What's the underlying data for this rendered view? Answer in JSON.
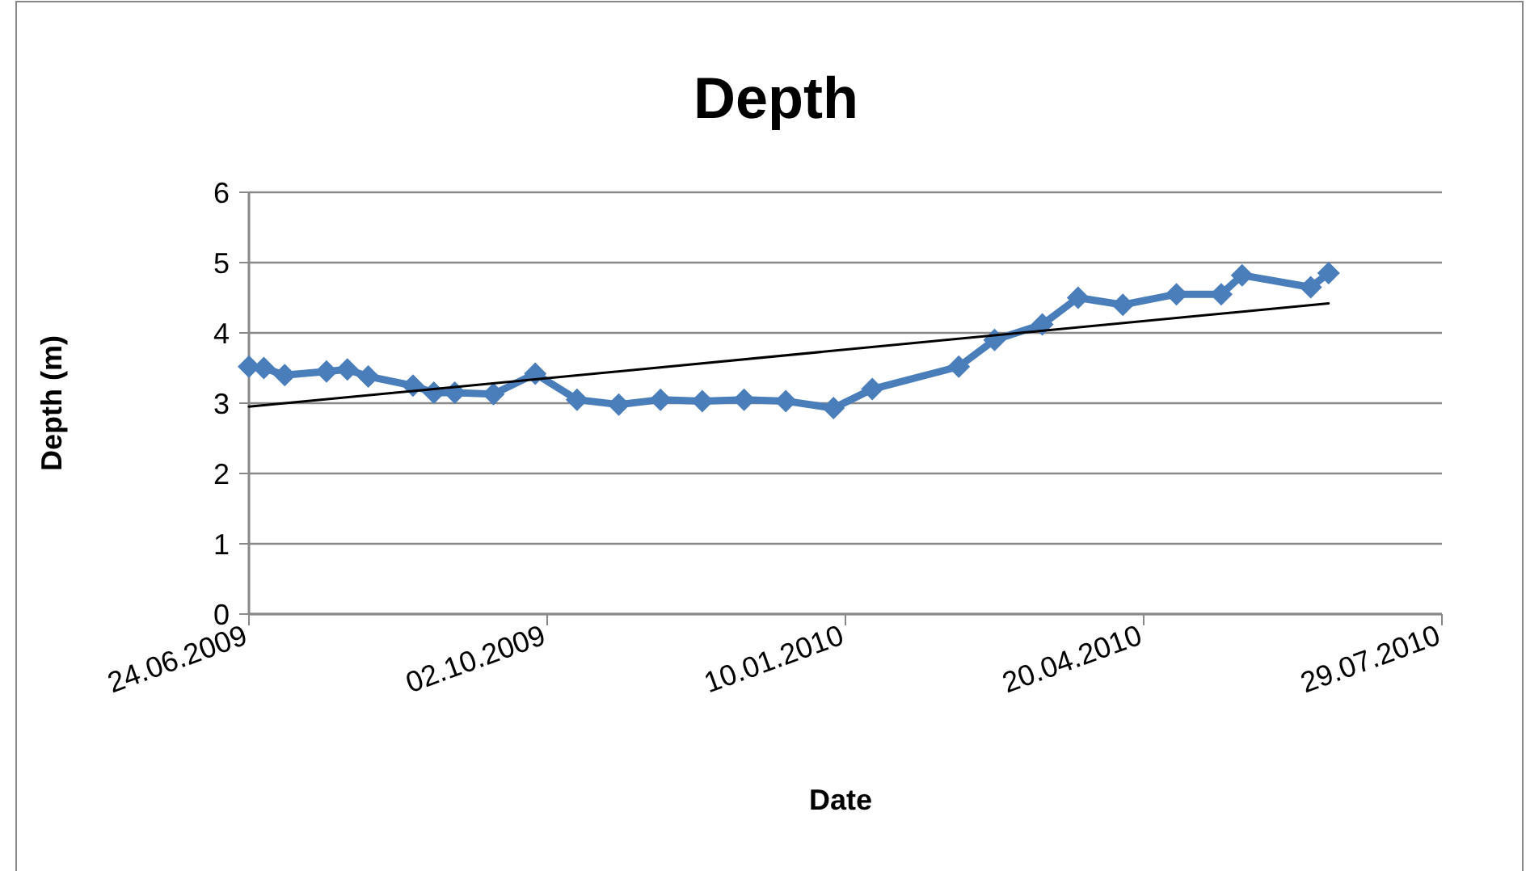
{
  "chart_data": {
    "type": "line",
    "title": "Depth",
    "xlabel": "Date",
    "ylabel": "Depth (m)",
    "xlim": [
      "2009-06-24",
      "2010-07-29"
    ],
    "xticks": [
      {
        "value": "2009-06-24",
        "label": "24.06.2009"
      },
      {
        "value": "2009-10-02",
        "label": "02.10.2009"
      },
      {
        "value": "2010-01-10",
        "label": "10.01.2010"
      },
      {
        "value": "2010-04-20",
        "label": "20.04.2010"
      },
      {
        "value": "2010-07-29",
        "label": "29.07.2010"
      }
    ],
    "ylim": [
      0,
      6
    ],
    "yticks": [
      0,
      1,
      2,
      3,
      4,
      5,
      6
    ],
    "grid": "y",
    "series": [
      {
        "color": "#4a7ebb",
        "marker": "diamond",
        "line_style": "solid",
        "x": [
          "2009-06-24",
          "2009-06-29",
          "2009-07-06",
          "2009-07-20",
          "2009-07-27",
          "2009-08-03",
          "2009-08-18",
          "2009-08-25",
          "2009-09-01",
          "2009-09-14",
          "2009-09-28",
          "2009-10-12",
          "2009-10-26",
          "2009-11-09",
          "2009-11-23",
          "2009-12-07",
          "2009-12-21",
          "2010-01-06",
          "2010-01-19",
          "2010-02-17",
          "2010-03-01",
          "2010-03-17",
          "2010-03-29",
          "2010-04-13",
          "2010-05-01",
          "2010-05-16",
          "2010-05-23",
          "2010-06-15",
          "2010-06-21"
        ],
        "values": [
          3.52,
          3.5,
          3.4,
          3.45,
          3.48,
          3.38,
          3.25,
          3.15,
          3.15,
          3.13,
          3.42,
          3.05,
          2.98,
          3.05,
          3.03,
          3.05,
          3.03,
          2.93,
          3.2,
          3.52,
          3.9,
          4.12,
          4.5,
          4.4,
          4.55,
          4.55,
          4.82,
          4.65,
          4.85
        ]
      },
      {
        "color": "#000000",
        "marker": "none",
        "line_style": "solid",
        "x": [
          "2009-06-24",
          "2010-06-21"
        ],
        "values": [
          2.95,
          4.42
        ]
      }
    ]
  }
}
